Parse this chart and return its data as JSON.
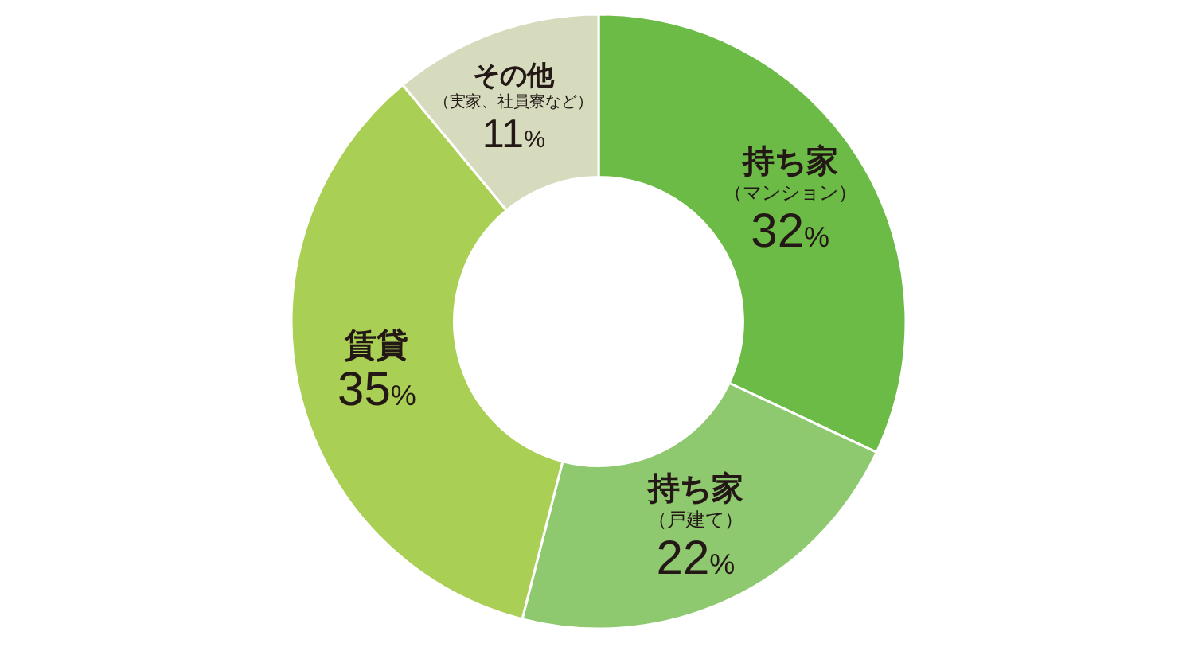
{
  "chart_data": {
    "type": "donut",
    "categories": [
      "持ち家（マンション）",
      "持ち家（戸建て）",
      "賃貸",
      "その他（実家、社員寮など）"
    ],
    "values": [
      32,
      22,
      35,
      11
    ],
    "colors": [
      "#6cbb46",
      "#8ec86f",
      "#a9cf55",
      "#d6dbbe"
    ],
    "value_labels": [
      "32%",
      "22%",
      "35%",
      "11%"
    ]
  }
}
